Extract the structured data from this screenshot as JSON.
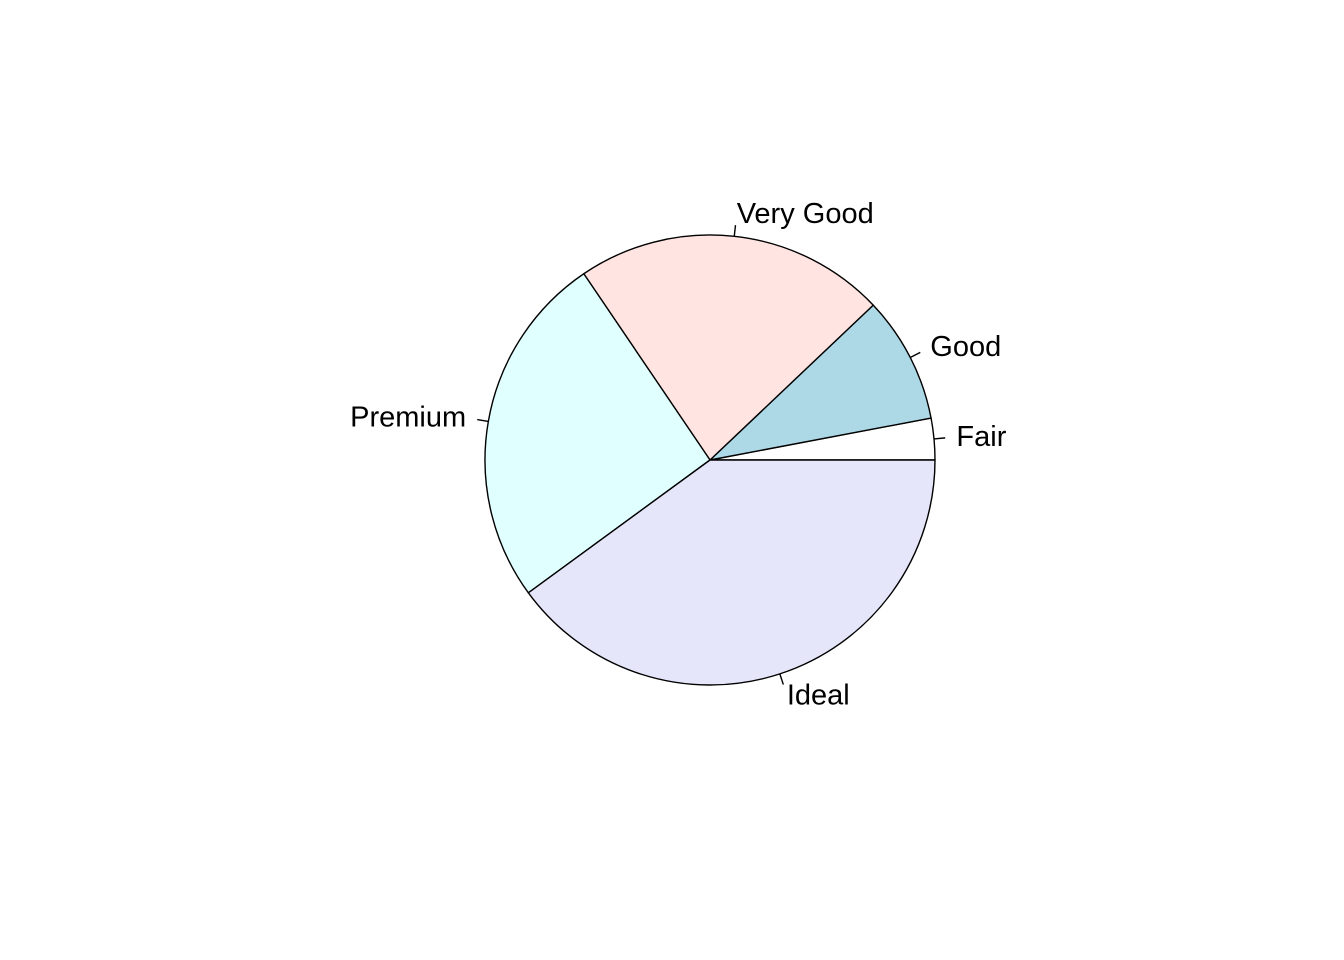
{
  "chart_data": {
    "type": "pie",
    "title": "",
    "start_angle_deg": 0,
    "direction": "counterclockwise",
    "slices": [
      {
        "label": "Fair",
        "value": 1610,
        "color": "#FFFFFF"
      },
      {
        "label": "Good",
        "value": 4906,
        "color": "#ADD8E6"
      },
      {
        "label": "Very Good",
        "value": 12082,
        "color": "#FFE4E1"
      },
      {
        "label": "Premium",
        "value": 13791,
        "color": "#E0FFFF"
      },
      {
        "label": "Ideal",
        "value": 21551,
        "color": "#E6E6FA"
      }
    ]
  }
}
